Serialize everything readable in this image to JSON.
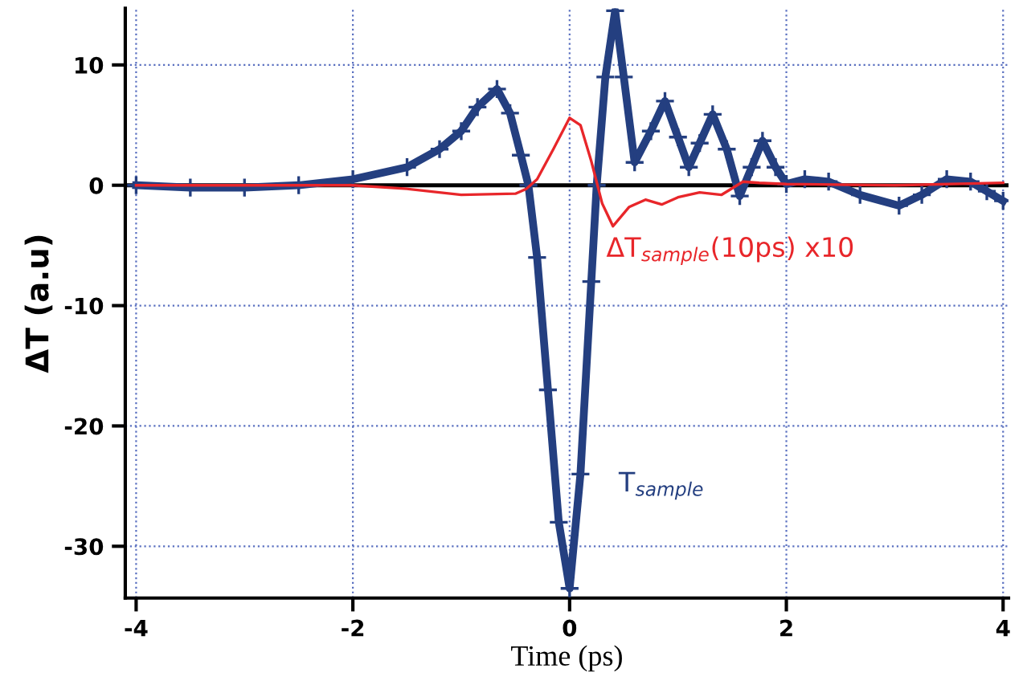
{
  "chart_data": {
    "type": "line",
    "xlabel": "Time (ps)",
    "ylabel": "ΔT (a.u)",
    "xlim": [
      -4.1,
      4.05
    ],
    "ylim": [
      -34.3,
      14.7
    ],
    "xticks": [
      -4,
      -2,
      0,
      2,
      4
    ],
    "yticks": [
      -30,
      -20,
      -10,
      0,
      10
    ],
    "grid": true,
    "legend": false,
    "series": [
      {
        "name": "T$_{sample}$",
        "color": "#243f80",
        "marker": "cross",
        "x": [
          -4,
          -3.5,
          -3,
          -2.5,
          -2,
          -1.5,
          -1.2,
          -1,
          -0.85,
          -0.67,
          -0.55,
          -0.45,
          -0.38,
          -0.3,
          -0.2,
          -0.1,
          0,
          0.1,
          0.2,
          0.25,
          0.33,
          0.42,
          0.5,
          0.6,
          0.75,
          0.88,
          1.0,
          1.1,
          1.2,
          1.32,
          1.45,
          1.57,
          1.68,
          1.78,
          1.9,
          2.0,
          2.17,
          2.39,
          2.68,
          3.04,
          3.25,
          3.48,
          3.7,
          3.85,
          4.0
        ],
        "values": [
          0,
          -0.2,
          -0.2,
          0,
          0.5,
          1.5,
          3,
          4.5,
          6.5,
          8,
          6,
          2.5,
          0,
          -6,
          -17,
          -28,
          -33.5,
          -24,
          -8,
          0,
          9,
          14.5,
          9,
          1.9,
          4.5,
          7,
          4,
          1.5,
          3.5,
          5.9,
          3,
          -0.9,
          1.5,
          3.7,
          1.5,
          0.1,
          0.5,
          0.3,
          -0.8,
          -1.7,
          -0.8,
          0.5,
          0.3,
          -0.5,
          -1.3
        ]
      },
      {
        "name": "ΔT$_{sample}$(10ps) x10",
        "color": "#e8262a",
        "marker": "none",
        "x": [
          -4,
          -3,
          -2,
          -1.5,
          -1,
          -0.5,
          -0.4,
          -0.3,
          -0.15,
          0,
          0.1,
          0.2,
          0.3,
          0.4,
          0.55,
          0.7,
          0.85,
          1.0,
          1.2,
          1.4,
          1.6,
          1.75,
          2,
          3,
          4
        ],
        "values": [
          0,
          0,
          0,
          -0.3,
          -0.8,
          -0.7,
          -0.3,
          0.5,
          3,
          5.6,
          5,
          2,
          -1.5,
          -3.4,
          -1.8,
          -1.2,
          -1.6,
          -1,
          -0.6,
          -0.8,
          0.3,
          0.2,
          0.1,
          0,
          0.2
        ]
      }
    ],
    "ref_lines": [
      {
        "axis": "y",
        "value": 0,
        "color": "#000000"
      }
    ]
  }
}
